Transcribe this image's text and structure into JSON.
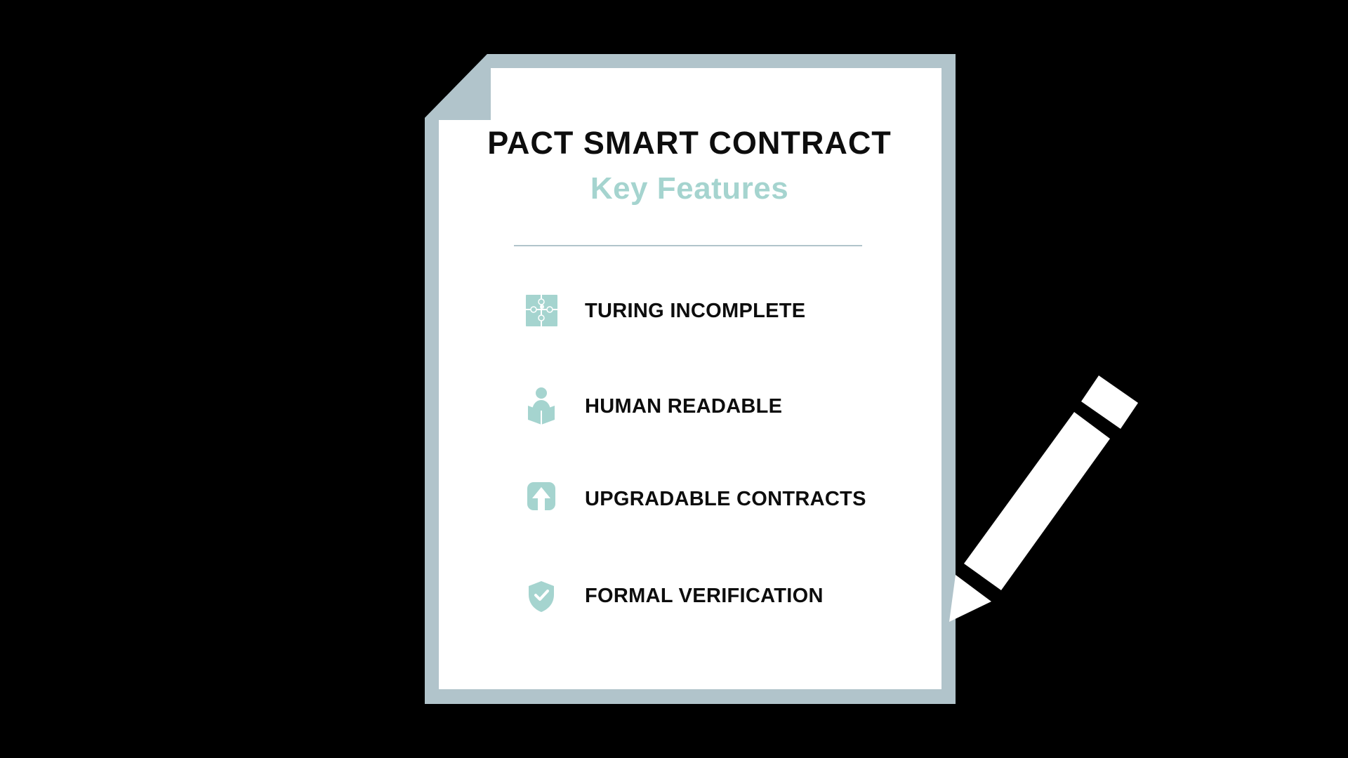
{
  "document": {
    "title": "PACT SMART CONTRACT",
    "subtitle": "Key Features"
  },
  "features": [
    {
      "label": "TURING INCOMPLETE",
      "icon": "puzzle-icon"
    },
    {
      "label": "HUMAN READABLE",
      "icon": "person-reading-icon"
    },
    {
      "label": "UPGRADABLE CONTRACTS",
      "icon": "upload-arrow-icon"
    },
    {
      "label": "FORMAL VERIFICATION",
      "icon": "shield-check-icon"
    }
  ],
  "colors": {
    "background": "#000000",
    "paper": "#ffffff",
    "paper_border": "#b1c4cb",
    "accent": "#a5d4cf",
    "text": "#0d0d0d",
    "pencil": "#ffffff"
  }
}
